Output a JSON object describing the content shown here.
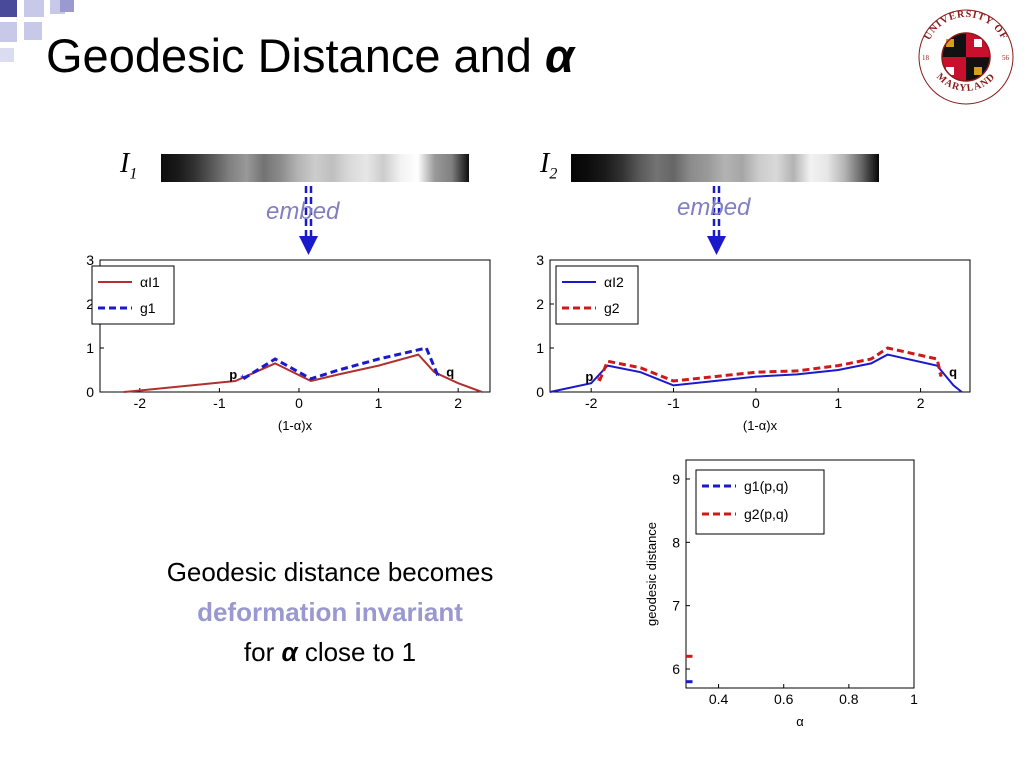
{
  "slide": {
    "title_text": "Geodesic Distance and ",
    "title_symbol": "α",
    "logo_text": "UNIVERSITY OF MARYLAND",
    "logo_year_left": "18",
    "logo_year_right": "56"
  },
  "strips": [
    {
      "label": "I",
      "sub": "1",
      "embed_label": "embed",
      "intensity": [
        0.05,
        0.1,
        0.2,
        0.35,
        0.5,
        0.6,
        0.45,
        0.55,
        0.7,
        0.8,
        0.75,
        0.85,
        0.9,
        0.8,
        0.95,
        1.0,
        0.6,
        0.5,
        0.05
      ]
    },
    {
      "label": "I",
      "sub": "2",
      "embed_label": "embed",
      "intensity": [
        0.02,
        0.05,
        0.1,
        0.2,
        0.35,
        0.45,
        0.4,
        0.55,
        0.6,
        0.7,
        0.65,
        0.8,
        0.85,
        0.7,
        0.95,
        0.9,
        0.7,
        0.4,
        0.02
      ]
    }
  ],
  "chart_data": [
    {
      "type": "line",
      "xlabel": "(1-α)x",
      "ylabel": "",
      "xlim": [
        -2.5,
        2.4
      ],
      "ylim": [
        0,
        3
      ],
      "xticks": [
        "-2",
        "-1",
        "0",
        "1",
        "2"
      ],
      "yticks": [
        "0",
        "1",
        "2",
        "3"
      ],
      "legend_position": "top-left",
      "point_labels": [
        "p",
        "q"
      ],
      "series": [
        {
          "name": "αI1",
          "color": "#b03030",
          "style": "solid",
          "x": [
            -2.2,
            -0.8,
            -0.3,
            0.15,
            0.5,
            1.0,
            1.5,
            1.7,
            2.0,
            2.3
          ],
          "y": [
            0.0,
            0.25,
            0.65,
            0.25,
            0.4,
            0.6,
            0.85,
            0.45,
            0.2,
            0.0
          ]
        },
        {
          "name": "g1",
          "color": "#1a1acc",
          "style": "dashed",
          "x": [
            -0.7,
            -0.3,
            0.15,
            0.5,
            1.0,
            1.6,
            1.75
          ],
          "y": [
            0.3,
            0.75,
            0.3,
            0.5,
            0.75,
            1.0,
            0.35
          ]
        }
      ]
    },
    {
      "type": "line",
      "xlabel": "(1-α)x",
      "ylabel": "",
      "xlim": [
        -2.5,
        2.6
      ],
      "ylim": [
        0,
        3
      ],
      "xticks": [
        "-2",
        "-1",
        "0",
        "1",
        "2"
      ],
      "yticks": [
        "0",
        "1",
        "2",
        "3"
      ],
      "legend_position": "top-left",
      "point_labels": [
        "p",
        "q"
      ],
      "series": [
        {
          "name": "αI2",
          "color": "#1a1acc",
          "style": "solid",
          "x": [
            -2.5,
            -2.0,
            -1.8,
            -1.4,
            -1.0,
            -0.5,
            0.0,
            0.5,
            1.0,
            1.4,
            1.6,
            2.2,
            2.4,
            2.5
          ],
          "y": [
            0.0,
            0.2,
            0.6,
            0.45,
            0.15,
            0.25,
            0.35,
            0.4,
            0.5,
            0.65,
            0.85,
            0.6,
            0.15,
            0.0
          ]
        },
        {
          "name": "g2",
          "color": "#cc1a1a",
          "style": "dashed",
          "x": [
            -1.9,
            -1.8,
            -1.4,
            -1.0,
            -0.5,
            0.0,
            0.5,
            1.0,
            1.4,
            1.6,
            2.2,
            2.25
          ],
          "y": [
            0.25,
            0.7,
            0.55,
            0.25,
            0.35,
            0.45,
            0.48,
            0.6,
            0.75,
            1.0,
            0.75,
            0.35
          ]
        }
      ]
    },
    {
      "type": "line",
      "xlabel": "α",
      "ylabel": "geodesic distance",
      "xlim": [
        0.3,
        1.0
      ],
      "ylim": [
        5.7,
        9.3
      ],
      "xticks": [
        "0.4",
        "0.6",
        "0.8",
        "1"
      ],
      "yticks": [
        "6",
        "7",
        "8",
        "9"
      ],
      "legend_position": "top-left",
      "series": [
        {
          "name": "g1(p,q)",
          "color": "#1a1acc",
          "style": "dashed",
          "x": [
            0.3,
            0.32
          ],
          "y": [
            5.8,
            5.8
          ]
        },
        {
          "name": "g2(p,q)",
          "color": "#cc1a1a",
          "style": "dashed",
          "x": [
            0.3,
            0.32
          ],
          "y": [
            6.2,
            6.2
          ]
        }
      ]
    }
  ],
  "caption": {
    "line1": "Geodesic distance becomes",
    "line2": "deformation invariant",
    "line3_pre": "for ",
    "line3_symbol": "α",
    "line3_post": " close to 1"
  }
}
